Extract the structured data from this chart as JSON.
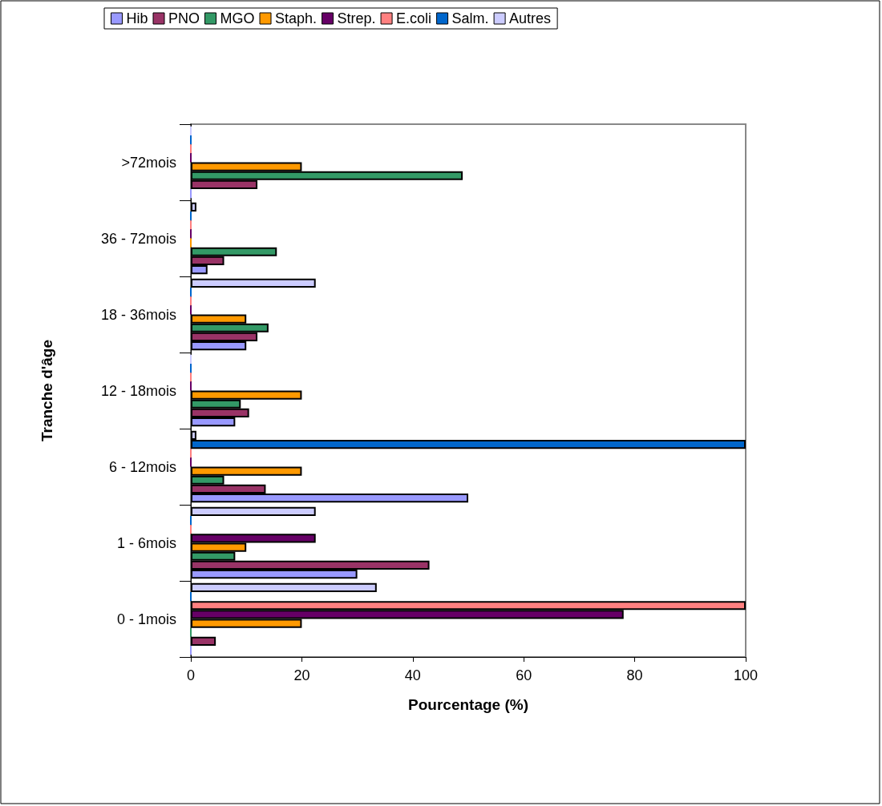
{
  "chart_data": {
    "type": "bar",
    "orientation": "horizontal",
    "xlabel": "Pourcentage (%)",
    "ylabel": "Tranche d'âge",
    "categories": [
      ">72mois",
      "36 - 72mois",
      "18 - 36mois",
      "12 - 18mois",
      "6 - 12mois",
      "1 - 6mois",
      "0 - 1mois"
    ],
    "series": [
      {
        "name": "Hib",
        "color": "#9999ff",
        "values": [
          0,
          3,
          10,
          8,
          50,
          30,
          0
        ]
      },
      {
        "name": "PNO",
        "color": "#993366",
        "values": [
          12,
          6,
          12,
          10.5,
          13.5,
          43,
          4.5
        ]
      },
      {
        "name": "MGO",
        "color": "#339966",
        "values": [
          49,
          15.5,
          14,
          9,
          6,
          8,
          0
        ]
      },
      {
        "name": "Staph.",
        "color": "#ff9900",
        "values": [
          20,
          0,
          10,
          20,
          20,
          10,
          20
        ]
      },
      {
        "name": "Strep.",
        "color": "#660066",
        "values": [
          0,
          0,
          0,
          0,
          0,
          22.5,
          78
        ]
      },
      {
        "name": "E.coli",
        "color": "#ff8080",
        "values": [
          0,
          0,
          0,
          0,
          0,
          0,
          100
        ]
      },
      {
        "name": "Salm.",
        "color": "#0066cc",
        "values": [
          0,
          0,
          0,
          0,
          100,
          0,
          0
        ]
      },
      {
        "name": "Autres",
        "color": "#ccccff",
        "values": [
          0,
          1,
          22.5,
          0,
          1,
          22.5,
          33.5
        ]
      }
    ],
    "xlim": [
      0,
      100
    ],
    "xticks": [
      0,
      20,
      40,
      60,
      80,
      100
    ],
    "grid": false,
    "legend": "top"
  }
}
